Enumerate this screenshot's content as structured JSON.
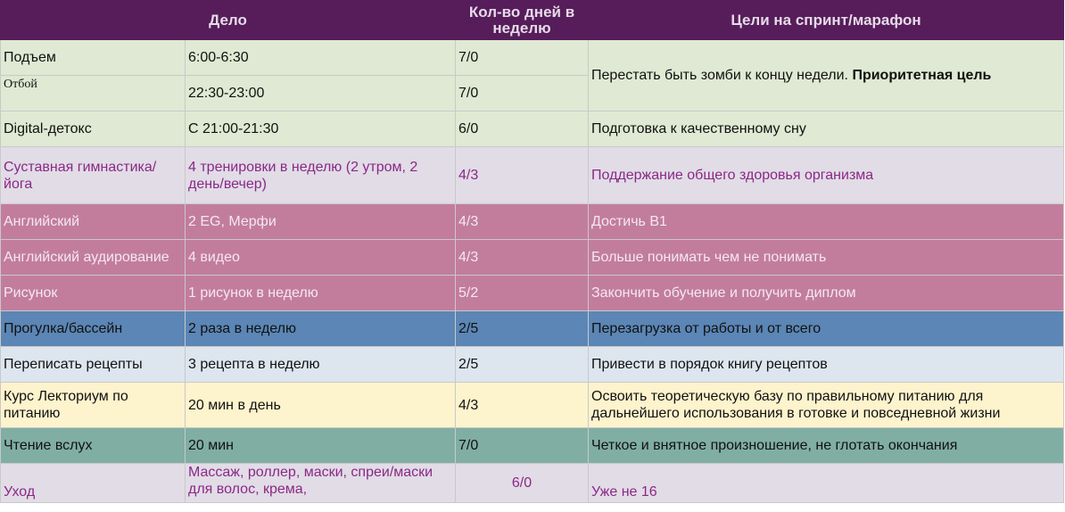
{
  "header": {
    "columns": [
      "Дело",
      "Кол-во дней в неделю",
      "Цели на спринт/марафон"
    ]
  },
  "table": {
    "rows": [
      [
        "Подъем",
        "6:00-6:30",
        "7/0",
        {
          "text": "Перестать быть зомби к концу недели.",
          "bold": "Приоритетная цель"
        }
      ],
      [
        "Отбой",
        "22:30-23:00",
        "7/0"
      ],
      [
        "Digital-детокс",
        "С 21:00-21:30",
        "6/0",
        "Подготовка к качественному сну"
      ],
      [
        "Суставная гимнастика/йога",
        "4 тренировки в неделю (2 утром, 2 день/вечер)",
        "4/3",
        "Поддержание общего здоровья организма"
      ],
      [
        "Английский",
        "2 EG, Мерфи",
        "4/3",
        "Достичь В1"
      ],
      [
        "Английский аудирование",
        "4 видео",
        "4/3",
        "Больше понимать чем не понимать"
      ],
      [
        "Рисунок",
        "1 рисунок в неделю",
        "5/2",
        "Закончить обучение и получить диплом"
      ],
      [
        "Прогулка/бассейн",
        "2 раза в неделю",
        "2/5",
        "Перезагрузка от работы и от всего"
      ],
      [
        "Переписать рецепты",
        "3 рецепта в неделю",
        "2/5",
        "Привести в порядок книгу рецептов"
      ],
      [
        "Курс Лекториум по питанию",
        "20 мин в день",
        "4/3",
        "Освоить теоретическую базу по правильному питанию для дальнейшего использования в готовке и повседневной жизни"
      ],
      [
        "Чтение вслух",
        "20 мин",
        "7/0",
        "Четкое и внятное произношение, не глотать окончания"
      ],
      [
        "Уход",
        "Массаж, роллер, маски, спреи/маски для волос, крема,",
        "6/0",
        "Уже не 16"
      ]
    ]
  }
}
